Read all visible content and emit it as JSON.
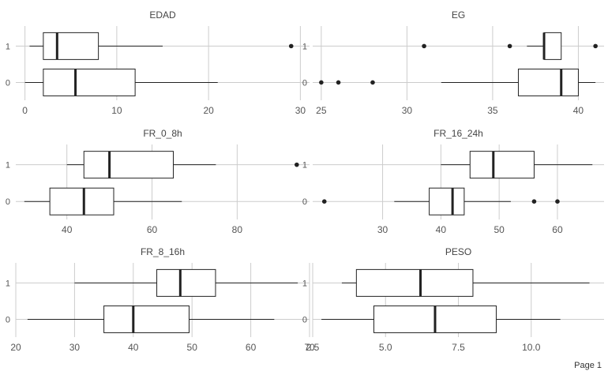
{
  "footer": {
    "page_label": "Page 1"
  },
  "colors": {
    "grid": "#cccccc",
    "box_stroke": "#222222",
    "text": "#555555",
    "title": "#444444"
  },
  "chart_data": [
    {
      "type": "box",
      "title": "EDAD",
      "xlim": [
        -1,
        31
      ],
      "xticks": [
        0,
        10,
        20,
        30
      ],
      "categories": [
        "1",
        "0"
      ],
      "boxes": [
        {
          "category": "1",
          "whisker_low": 0.5,
          "q1": 2,
          "median": 3.5,
          "q3": 8,
          "whisker_high": 15,
          "outliers": [
            29
          ]
        },
        {
          "category": "0",
          "whisker_low": 0,
          "q1": 2,
          "median": 5.5,
          "q3": 12,
          "whisker_high": 21,
          "outliers": []
        }
      ]
    },
    {
      "type": "box",
      "title": "EG",
      "xlim": [
        24.5,
        41.5
      ],
      "xticks": [
        25,
        30,
        35,
        40
      ],
      "categories": [
        "1",
        "0"
      ],
      "boxes": [
        {
          "category": "1",
          "whisker_low": 37,
          "q1": 38,
          "median": 38,
          "q3": 39,
          "whisker_high": 39,
          "outliers": [
            31,
            36,
            41
          ]
        },
        {
          "category": "0",
          "whisker_low": 32,
          "q1": 36.5,
          "median": 39,
          "q3": 40,
          "whisker_high": 41,
          "outliers": [
            25,
            26,
            28
          ]
        }
      ]
    },
    {
      "type": "box",
      "title": "FR_0_8h",
      "xlim": [
        28,
        97
      ],
      "xticks": [
        40,
        60,
        80
      ],
      "categories": [
        "1",
        "0"
      ],
      "boxes": [
        {
          "category": "1",
          "whisker_low": 40,
          "q1": 44,
          "median": 50,
          "q3": 65,
          "whisker_high": 75,
          "outliers": [
            94
          ]
        },
        {
          "category": "0",
          "whisker_low": 30,
          "q1": 36,
          "median": 44,
          "q3": 51,
          "whisker_high": 67,
          "outliers": []
        }
      ]
    },
    {
      "type": "box",
      "title": "FR_16_24h",
      "xlim": [
        18,
        68
      ],
      "xticks": [
        30,
        40,
        50,
        60
      ],
      "categories": [
        "1",
        "0"
      ],
      "boxes": [
        {
          "category": "1",
          "whisker_low": 40,
          "q1": 45,
          "median": 49,
          "q3": 56,
          "whisker_high": 66,
          "outliers": []
        },
        {
          "category": "0",
          "whisker_low": 32,
          "q1": 38,
          "median": 42,
          "q3": 44,
          "whisker_high": 52,
          "outliers": [
            20,
            56,
            60
          ]
        }
      ]
    },
    {
      "type": "box",
      "title": "FR_8_16h",
      "xlim": [
        20,
        70
      ],
      "xticks": [
        20,
        30,
        40,
        50,
        60,
        70
      ],
      "categories": [
        "1",
        "0"
      ],
      "boxes": [
        {
          "category": "1",
          "whisker_low": 30,
          "q1": 44,
          "median": 48,
          "q3": 54,
          "whisker_high": 68,
          "outliers": []
        },
        {
          "category": "0",
          "whisker_low": 22,
          "q1": 35,
          "median": 40,
          "q3": 49.5,
          "whisker_high": 64,
          "outliers": []
        }
      ]
    },
    {
      "type": "box",
      "title": "PESO",
      "xlim": [
        2.5,
        12.5
      ],
      "xticks": [
        2.5,
        5.0,
        7.5,
        10.0
      ],
      "xtick_labels": [
        "2.5",
        "5.0",
        "7.5",
        "10.0"
      ],
      "categories": [
        "1",
        "0"
      ],
      "boxes": [
        {
          "category": "1",
          "whisker_low": 3.5,
          "q1": 4,
          "median": 6.2,
          "q3": 8,
          "whisker_high": 12,
          "outliers": []
        },
        {
          "category": "0",
          "whisker_low": 2.8,
          "q1": 4.6,
          "median": 6.7,
          "q3": 8.8,
          "whisker_high": 11,
          "outliers": []
        }
      ]
    }
  ]
}
